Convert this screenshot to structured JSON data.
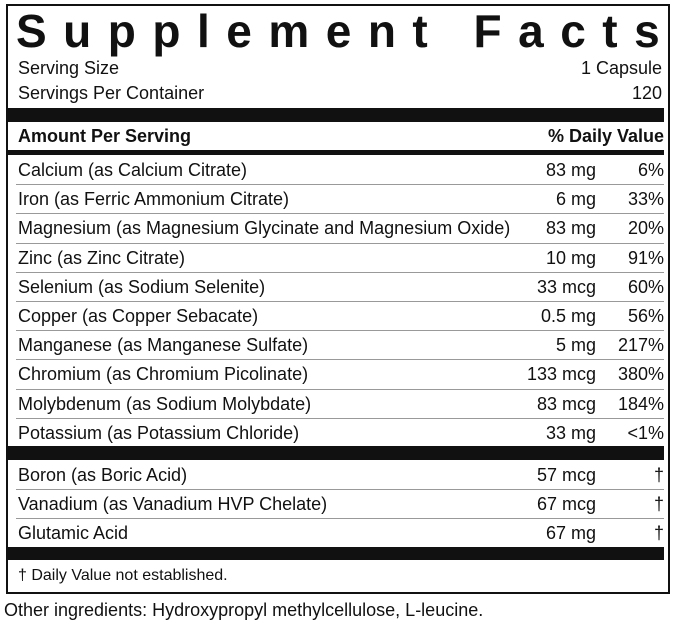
{
  "title": "Supplement Facts",
  "serving": {
    "size_label": "Serving Size",
    "size": "1 Capsule",
    "servings_label": "Servings Per Container",
    "servings": "120"
  },
  "table": {
    "header": [
      "Amount Per Serving",
      "% Daily Value"
    ],
    "rows": [
      [
        "Calcium (as Calcium Citrate)",
        "83 mg",
        "6%"
      ],
      [
        "Iron (as Ferric Ammonium Citrate)",
        "6 mg",
        "33%"
      ],
      [
        "Magnesium (as Magnesium Glycinate and Magnesium Oxide)",
        "83 mg",
        "20%"
      ],
      [
        "Zinc (as Zinc Citrate)",
        "10 mg",
        "91%"
      ],
      [
        "Selenium (as Sodium Selenite)",
        "33 mcg",
        "60%"
      ],
      [
        "Copper (as Copper Sebacate)",
        "0.5 mg",
        "56%"
      ],
      [
        "Manganese (as Manganese Sulfate)",
        "5 mg",
        "217%"
      ],
      [
        "Chromium (as Chromium Picolinate)",
        "133 mcg",
        "380%"
      ],
      [
        "Molybdenum (as Sodium Molybdate)",
        "83 mcg",
        "184%"
      ],
      [
        "Potassium (as Potassium Chloride)",
        "33 mg",
        "<1%"
      ]
    ],
    "rows2": [
      [
        "Boron (as Boric Acid)",
        "57 mcg",
        "†"
      ],
      [
        "Vanadium (as Vanadium HVP Chelate)",
        "67 mcg",
        "†"
      ],
      [
        "Glutamic Acid",
        "67 mg",
        "†"
      ]
    ]
  },
  "footnote": "† Daily Value not established.",
  "other_ingredients": "Other ingredients: Hydroxypropyl methylcellulose, L-leucine."
}
